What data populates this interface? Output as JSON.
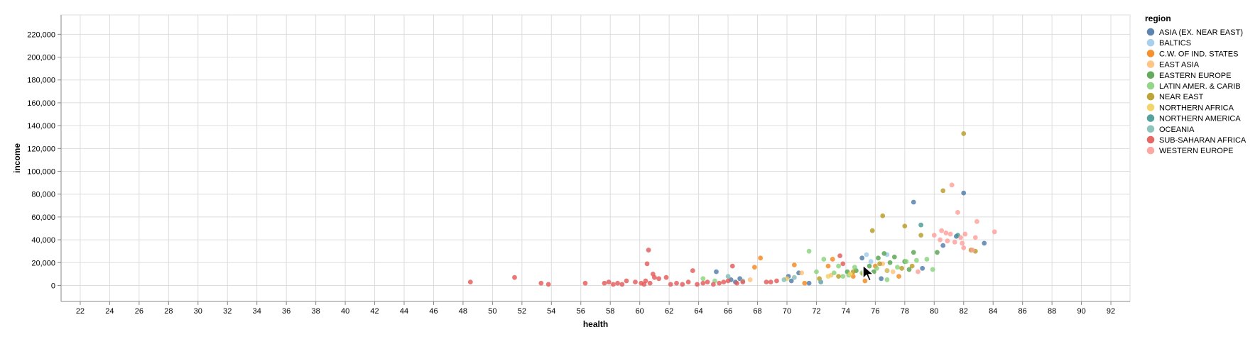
{
  "chart_data": {
    "type": "scatter",
    "xlabel": "health",
    "ylabel": "income",
    "xlim": [
      20.7,
      93.3
    ],
    "ylim": [
      -14000,
      237000
    ],
    "xticks": [
      22,
      24,
      26,
      28,
      30,
      32,
      34,
      36,
      38,
      40,
      42,
      44,
      46,
      48,
      50,
      52,
      54,
      56,
      58,
      60,
      62,
      64,
      66,
      68,
      70,
      72,
      74,
      76,
      78,
      80,
      82,
      84,
      86,
      88,
      90,
      92
    ],
    "yticks": [
      0,
      20000,
      40000,
      60000,
      80000,
      100000,
      120000,
      140000,
      160000,
      180000,
      200000,
      220000
    ],
    "grid": true,
    "legend_title": "region",
    "legend_position": "right",
    "series": [
      {
        "name": "ASIA (EX. NEAR EAST)",
        "color": "#4c78a8",
        "points": [
          [
            65.2,
            12000
          ],
          [
            66.2,
            5000
          ],
          [
            66.5,
            3000
          ],
          [
            66.8,
            6000
          ],
          [
            70.1,
            8000
          ],
          [
            70.3,
            4000
          ],
          [
            70.8,
            11000
          ],
          [
            71.5,
            2000
          ],
          [
            72.3,
            3000
          ],
          [
            75.1,
            24000
          ],
          [
            76.4,
            6000
          ],
          [
            76.8,
            13000
          ],
          [
            78.6,
            73000
          ],
          [
            79.2,
            15000
          ],
          [
            80.6,
            35000
          ],
          [
            81.5,
            43000
          ],
          [
            82.0,
            81000
          ],
          [
            83.4,
            37000
          ]
        ]
      },
      {
        "name": "BALTICS",
        "color": "#9ecae9",
        "points": [
          [
            75.4,
            27000
          ],
          [
            76.8,
            27000
          ],
          [
            75.7,
            21000
          ]
        ]
      },
      {
        "name": "C.W. OF IND. STATES",
        "color": "#f58518",
        "points": [
          [
            67.8,
            16000
          ],
          [
            68.2,
            24000
          ],
          [
            70.5,
            18000
          ],
          [
            71.2,
            2000
          ],
          [
            72.8,
            17000
          ],
          [
            73.1,
            23000
          ],
          [
            74.5,
            8000
          ],
          [
            75.3,
            4000
          ],
          [
            76.0,
            17000
          ],
          [
            77.6,
            8000
          ]
        ]
      },
      {
        "name": "EAST ASIA",
        "color": "#ffbf79",
        "points": [
          [
            67.5,
            5000
          ],
          [
            71.0,
            11000
          ],
          [
            73.0,
            9000
          ],
          [
            76.5,
            19000
          ],
          [
            77.2,
            12000
          ]
        ]
      },
      {
        "name": "EASTERN EUROPE",
        "color": "#54a24b",
        "points": [
          [
            74.1,
            12000
          ],
          [
            74.7,
            13000
          ],
          [
            75.6,
            17000
          ],
          [
            76.2,
            24000
          ],
          [
            76.6,
            28000
          ],
          [
            77.0,
            20000
          ],
          [
            77.3,
            25000
          ],
          [
            78.0,
            21000
          ],
          [
            78.6,
            29000
          ],
          [
            78.3,
            14000
          ],
          [
            75.9,
            12000
          ],
          [
            80.2,
            29000
          ]
        ]
      },
      {
        "name": "LATIN AMER. & CARIB",
        "color": "#88d27a",
        "points": [
          [
            64.3,
            6000
          ],
          [
            65.1,
            4000
          ],
          [
            71.5,
            30000
          ],
          [
            72.5,
            23000
          ],
          [
            73.2,
            11000
          ],
          [
            73.8,
            8000
          ],
          [
            74.2,
            9000
          ],
          [
            74.6,
            16000
          ],
          [
            75.1,
            11000
          ],
          [
            76.1,
            15000
          ],
          [
            76.8,
            5000
          ],
          [
            77.5,
            16000
          ],
          [
            78.1,
            21000
          ],
          [
            78.8,
            22000
          ],
          [
            79.5,
            23000
          ],
          [
            79.9,
            14000
          ],
          [
            72.0,
            12000
          ],
          [
            73.5,
            17000
          ]
        ]
      },
      {
        "name": "NEAR EAST",
        "color": "#b79a20",
        "points": [
          [
            72.2,
            6000
          ],
          [
            73.5,
            8000
          ],
          [
            74.5,
            12000
          ],
          [
            75.2,
            10000
          ],
          [
            75.8,
            48000
          ],
          [
            76.5,
            61000
          ],
          [
            77.8,
            15000
          ],
          [
            78.0,
            52000
          ],
          [
            78.5,
            17000
          ],
          [
            79.1,
            44000
          ],
          [
            80.6,
            83000
          ],
          [
            82.0,
            133000
          ],
          [
            82.5,
            31000
          ],
          [
            82.8,
            30000
          ],
          [
            76.3,
            19000
          ]
        ]
      },
      {
        "name": "NORTHERN AFRICA",
        "color": "#f2cf5b",
        "points": [
          [
            70.0,
            6000
          ],
          [
            72.8,
            8000
          ],
          [
            74.3,
            10000
          ],
          [
            75.5,
            10000
          ],
          [
            76.8,
            13000
          ]
        ]
      },
      {
        "name": "NORTHERN AMERICA",
        "color": "#439894",
        "points": [
          [
            79.1,
            53000
          ],
          [
            81.6,
            44000
          ]
        ]
      },
      {
        "name": "OCEANIA",
        "color": "#83bcb6",
        "points": [
          [
            66.0,
            8000
          ],
          [
            67.0,
            4000
          ],
          [
            69.8,
            5000
          ],
          [
            72.3,
            3000
          ],
          [
            70.5,
            7000
          ]
        ]
      },
      {
        "name": "SUB-SAHARAN AFRICA",
        "color": "#e45756",
        "points": [
          [
            48.5,
            3000
          ],
          [
            51.5,
            7000
          ],
          [
            53.3,
            2000
          ],
          [
            53.8,
            1000
          ],
          [
            56.3,
            2000
          ],
          [
            57.6,
            2000
          ],
          [
            57.9,
            3000
          ],
          [
            58.2,
            1000
          ],
          [
            58.5,
            2000
          ],
          [
            58.8,
            1000
          ],
          [
            59.1,
            4000
          ],
          [
            59.7,
            3000
          ],
          [
            60.1,
            2000
          ],
          [
            60.3,
            1000
          ],
          [
            60.4,
            4000
          ],
          [
            60.5,
            19000
          ],
          [
            60.6,
            31000
          ],
          [
            60.7,
            2000
          ],
          [
            60.9,
            10000
          ],
          [
            61.0,
            7000
          ],
          [
            61.3,
            6000
          ],
          [
            61.8,
            7000
          ],
          [
            62.1,
            1000
          ],
          [
            62.5,
            2000
          ],
          [
            62.9,
            1000
          ],
          [
            63.3,
            3000
          ],
          [
            63.6,
            13000
          ],
          [
            63.9,
            1000
          ],
          [
            64.3,
            2000
          ],
          [
            64.6,
            3000
          ],
          [
            65.0,
            1000
          ],
          [
            65.4,
            2000
          ],
          [
            65.7,
            3000
          ],
          [
            66.0,
            4000
          ],
          [
            66.3,
            17000
          ],
          [
            66.6,
            2000
          ],
          [
            67.0,
            3000
          ],
          [
            68.6,
            3000
          ],
          [
            68.9,
            3000
          ],
          [
            69.3,
            4000
          ],
          [
            73.8,
            19000
          ],
          [
            73.6,
            26000
          ]
        ]
      },
      {
        "name": "WESTERN EUROPE",
        "color": "#ff9d98",
        "points": [
          [
            78.9,
            12000
          ],
          [
            80.0,
            44000
          ],
          [
            80.4,
            40000
          ],
          [
            80.5,
            48000
          ],
          [
            80.8,
            46000
          ],
          [
            80.9,
            39000
          ],
          [
            81.1,
            45000
          ],
          [
            81.2,
            88000
          ],
          [
            81.4,
            38000
          ],
          [
            81.6,
            64000
          ],
          [
            81.8,
            42000
          ],
          [
            81.9,
            37000
          ],
          [
            82.0,
            33000
          ],
          [
            82.1,
            45000
          ],
          [
            82.6,
            31000
          ],
          [
            82.8,
            42000
          ],
          [
            82.9,
            56000
          ],
          [
            84.1,
            47000
          ]
        ]
      }
    ]
  }
}
